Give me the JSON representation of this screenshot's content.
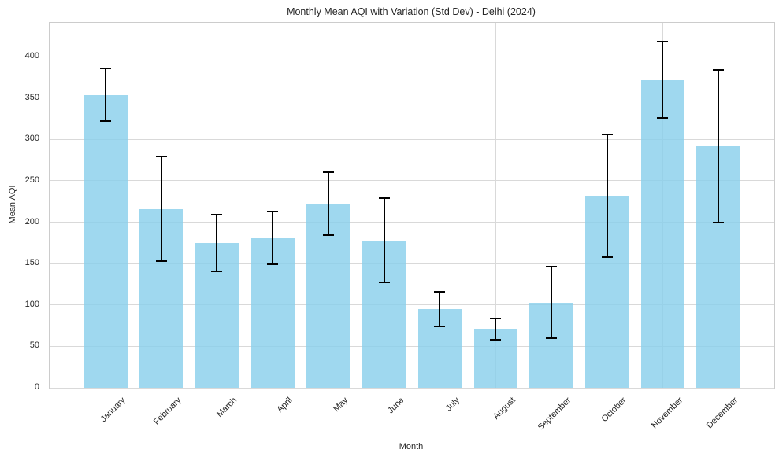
{
  "figure": {
    "title": "Monthly Mean AQI with Variation (Std Dev) - Delhi (2024)",
    "x_axis_label": "Month",
    "y_axis_label": "Mean AQI"
  },
  "chart_data": {
    "type": "bar",
    "title": "Monthly Mean AQI with Variation (Std Dev) - Delhi (2024)",
    "xlabel": "Month",
    "ylabel": "Mean AQI",
    "categories": [
      "January",
      "February",
      "March",
      "April",
      "May",
      "June",
      "July",
      "August",
      "September",
      "October",
      "November",
      "December"
    ],
    "series": [
      {
        "name": "Mean AQI",
        "values": [
          354,
          216,
          175,
          181,
          222,
          178,
          95,
          71,
          103,
          232,
          372,
          292
        ]
      },
      {
        "name": "Std Dev",
        "values": [
          32,
          63,
          34,
          32,
          38,
          51,
          21,
          13,
          43,
          74,
          46,
          92
        ]
      }
    ],
    "error_bar_upper": [
      386,
      279,
      209,
      213,
      260,
      229,
      116,
      84,
      146,
      306,
      418,
      384
    ],
    "error_bar_lower": [
      322,
      153,
      141,
      149,
      184,
      127,
      74,
      58,
      60,
      158,
      326,
      200
    ],
    "yticks": [
      0,
      50,
      100,
      150,
      200,
      250,
      300,
      350,
      400
    ],
    "ylim": [
      0,
      441
    ],
    "grid": true,
    "legend_position": "none",
    "x_tick_rotation_deg": 45,
    "colors": {
      "bar_fill": "#87CEEB",
      "bar_alpha": 0.8,
      "error_bar": "#000000",
      "gridline": "#d9d9d9",
      "spine": "#cccccc",
      "text": "#262626"
    }
  }
}
